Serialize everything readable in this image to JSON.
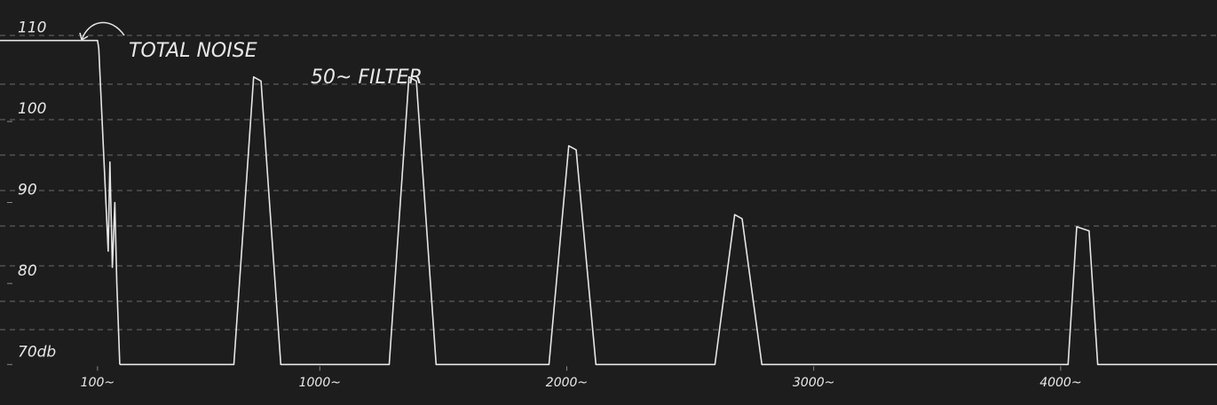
{
  "chart_data": {
    "type": "line",
    "xlim": [
      -295,
      4633
    ],
    "ylim": [
      65,
      115
    ],
    "yticks": [
      110,
      100,
      90,
      80,
      {
        "value": 70,
        "label": "70db"
      }
    ],
    "xticks": [
      {
        "value": 100,
        "label": "100~"
      },
      {
        "value": 1000,
        "label": "1000~"
      },
      {
        "value": 2000,
        "label": "2000~"
      },
      {
        "value": 3000,
        "label": "3000~"
      },
      {
        "value": 4000,
        "label": "4000~"
      }
    ],
    "grid": false,
    "series": [
      {
        "name": "TOTAL NOISE",
        "color": "#e6e6e6",
        "x": [
          -295,
          100,
          105,
          143,
          150,
          160,
          170,
          178,
          190
        ],
        "values": [
          110,
          110,
          109,
          84,
          95,
          82,
          90,
          80,
          70
        ]
      },
      {
        "name": "50~ FILTER",
        "color": "#e6e6e6",
        "x": [
          190,
          652,
          732,
          762,
          842,
          1281,
          1361,
          1391,
          1471,
          1928,
          2008,
          2038,
          2118,
          2600,
          2680,
          2710,
          2790,
          4030,
          4065,
          4115,
          4150,
          4633
        ],
        "values": [
          70,
          70,
          105.5,
          105,
          70,
          70,
          105.5,
          105,
          70,
          70,
          97,
          96.5,
          70,
          70,
          88.5,
          88,
          70,
          70,
          87,
          86.5,
          70,
          70
        ]
      }
    ]
  }
}
